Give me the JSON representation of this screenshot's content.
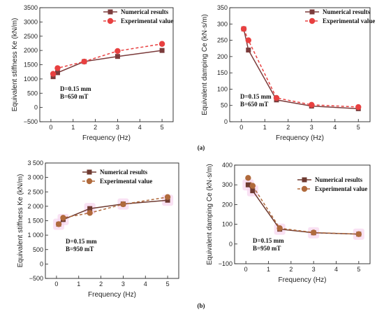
{
  "panel_labels": [
    "(a)",
    "(b)"
  ],
  "chart_data": [
    {
      "type": "line",
      "xlabel": "Frequency (Hz)",
      "ylabel": "Equivalent stiffness Ke (kN/m)",
      "xlim": [
        -0.5,
        5.5
      ],
      "ylim": [
        -500,
        3500
      ],
      "xticks": [
        0,
        1,
        2,
        3,
        4,
        5
      ],
      "yticks": [
        -500,
        0,
        500,
        1000,
        1500,
        2000,
        2500,
        3000,
        3500
      ],
      "ytick_labels": [
        "−500",
        "0",
        "500",
        "1000",
        "1500",
        "2000",
        "2500",
        "3000",
        "3500"
      ],
      "legend": "top-right",
      "annotation": [
        "D=0.15 mm",
        "B=650 mT"
      ],
      "series": [
        {
          "name": "Numerical results",
          "marker": "square",
          "dash": false,
          "color": "#7b3b3b",
          "x": [
            0.1,
            0.3,
            1.5,
            3,
            5
          ],
          "y": [
            1080,
            1220,
            1610,
            1790,
            2000
          ]
        },
        {
          "name": "Experimental value",
          "marker": "circle",
          "dash": true,
          "color": "#e84040",
          "x": [
            0.1,
            0.3,
            1.5,
            3,
            5
          ],
          "y": [
            1180,
            1380,
            1610,
            1980,
            2230
          ]
        }
      ]
    },
    {
      "type": "line",
      "xlabel": "Frequency (Hz)",
      "ylabel": "Equivalent damping Ce (kN·s/m)",
      "xlim": [
        -0.5,
        5.5
      ],
      "ylim": [
        0,
        350
      ],
      "xticks": [
        0,
        1,
        2,
        3,
        4,
        5
      ],
      "yticks": [
        0,
        50,
        100,
        150,
        200,
        250,
        300,
        350
      ],
      "ytick_labels": [
        "0",
        "50",
        "100",
        "150",
        "200",
        "250",
        "300",
        "350"
      ],
      "legend": "top-right",
      "annotation": [
        "D=0.15 mm",
        "B=650 mT"
      ],
      "series": [
        {
          "name": "Numerical results",
          "marker": "square",
          "dash": false,
          "color": "#7b3b3b",
          "x": [
            0.1,
            0.3,
            1.5,
            3,
            5
          ],
          "y": [
            285,
            220,
            67,
            48,
            40
          ]
        },
        {
          "name": "Experimental value",
          "marker": "circle",
          "dash": true,
          "color": "#e84040",
          "x": [
            0.1,
            0.3,
            1.5,
            3,
            5
          ],
          "y": [
            285,
            250,
            73,
            52,
            45
          ]
        }
      ]
    },
    {
      "type": "line",
      "xlabel": "Frequency (Hz)",
      "ylabel": "Equivalent stiffness Ke (kN/m)",
      "xlim": [
        -0.5,
        5.5
      ],
      "ylim": [
        -500,
        3500
      ],
      "xticks": [
        0,
        1,
        2,
        3,
        4,
        5
      ],
      "yticks": [
        -500,
        0,
        500,
        1000,
        1500,
        2000,
        2500,
        3000,
        3500
      ],
      "ytick_labels": [
        "−500",
        "0",
        "500",
        "1 000",
        "1 500",
        "2 000",
        "2 500",
        "3 000",
        "3 500"
      ],
      "legend": "top-right",
      "annotation": [
        "D=0.15 mm",
        "B=950 mT"
      ],
      "series": [
        {
          "name": "Numerical results",
          "marker": "square",
          "dash": false,
          "color": "#6e3a30",
          "x": [
            0.1,
            0.3,
            1.5,
            3,
            5
          ],
          "y": [
            1380,
            1540,
            1920,
            2080,
            2210
          ]
        },
        {
          "name": "Experimental value",
          "marker": "circle",
          "dash": true,
          "color": "#b06a3c",
          "x": [
            0.1,
            0.3,
            1.5,
            3,
            5
          ],
          "y": [
            1380,
            1600,
            1770,
            2070,
            2320
          ]
        }
      ]
    },
    {
      "type": "line",
      "xlabel": "Frequency (Hz)",
      "ylabel": "Equivalent damping Ce (kN·s/m)",
      "xlim": [
        -0.5,
        5.5
      ],
      "ylim": [
        -100,
        400
      ],
      "xticks": [
        0,
        1,
        2,
        3,
        4,
        5
      ],
      "yticks": [
        -100,
        0,
        100,
        200,
        300,
        400
      ],
      "ytick_labels": [
        "−100",
        "0",
        "100",
        "200",
        "300",
        "400"
      ],
      "legend": "top-right",
      "annotation": [
        "D=0.15 mm",
        "B=950 mT"
      ],
      "series": [
        {
          "name": "Numerical results",
          "marker": "square",
          "dash": false,
          "color": "#6e3a30",
          "x": [
            0.1,
            0.3,
            1.5,
            3,
            5
          ],
          "y": [
            300,
            270,
            75,
            57,
            50
          ]
        },
        {
          "name": "Experimental value",
          "marker": "circle",
          "dash": true,
          "color": "#b06a3c",
          "x": [
            0.1,
            0.3,
            1.5,
            3,
            5
          ],
          "y": [
            335,
            295,
            80,
            58,
            50
          ]
        }
      ]
    }
  ]
}
